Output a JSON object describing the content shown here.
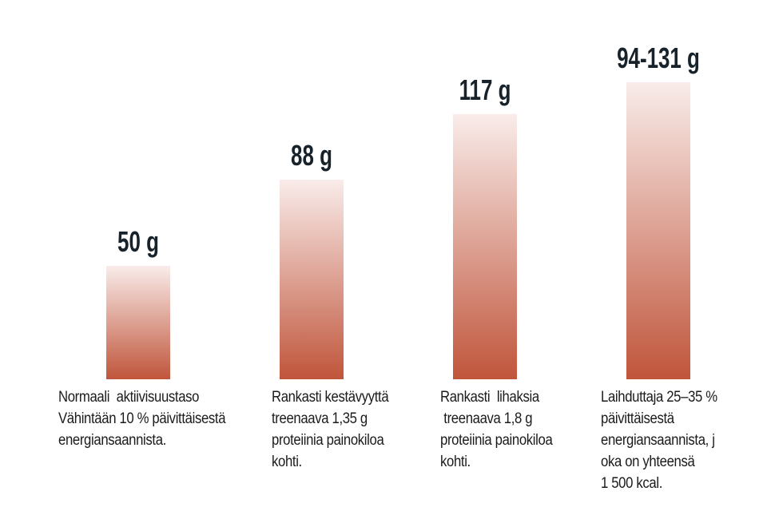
{
  "chart_data": {
    "type": "bar",
    "categories": [
      "Normaali  aktiivisuustaso\nVähintään 10 % päivittäisestä\nenergiansaannista.",
      "Rankasti kestävyyttä\ntreenaava 1,35 g\nproteiinia painokiloa\nkohti.",
      "Rankasti  lihaksia\n treenaava 1,8 g\nproteiinia painokiloa\nkohti.",
      "Laihduttaja 25–35 %\npäivittäisestä\nenergiansaannista, j\noka on yhteensä\n1 500 kcal."
    ],
    "values": [
      50,
      88,
      117,
      131
    ],
    "value_labels": [
      "50 g",
      "88 g",
      "117 g",
      "94-131 g"
    ],
    "color": "#c0553b",
    "gradient_top": "#f9ecea",
    "ylim": [
      0,
      150
    ]
  }
}
